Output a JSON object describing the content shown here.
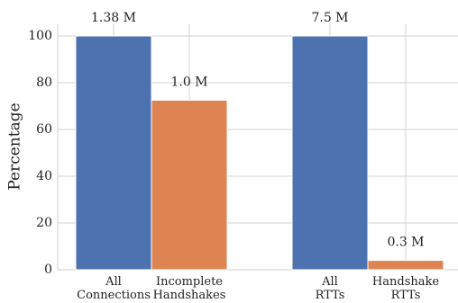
{
  "chart_data": {
    "type": "bar",
    "y_label": "Percentage",
    "categories": [
      "All\nConnections",
      "Incomplete\nHandshakes",
      "All\nRTTs",
      "Handshake\nRTTs"
    ],
    "values": [
      100,
      72.5,
      100,
      4
    ],
    "colors": [
      "#4c72b0",
      "#dd8452",
      "#4c72b0",
      "#dd8452"
    ],
    "annotations": [
      "1.38 M",
      "1.0 M",
      "7.5 M",
      "0.3 M"
    ],
    "ylim": [
      0,
      105
    ],
    "yticks": [
      0,
      20,
      40,
      60,
      80,
      100
    ],
    "grid": true
  }
}
